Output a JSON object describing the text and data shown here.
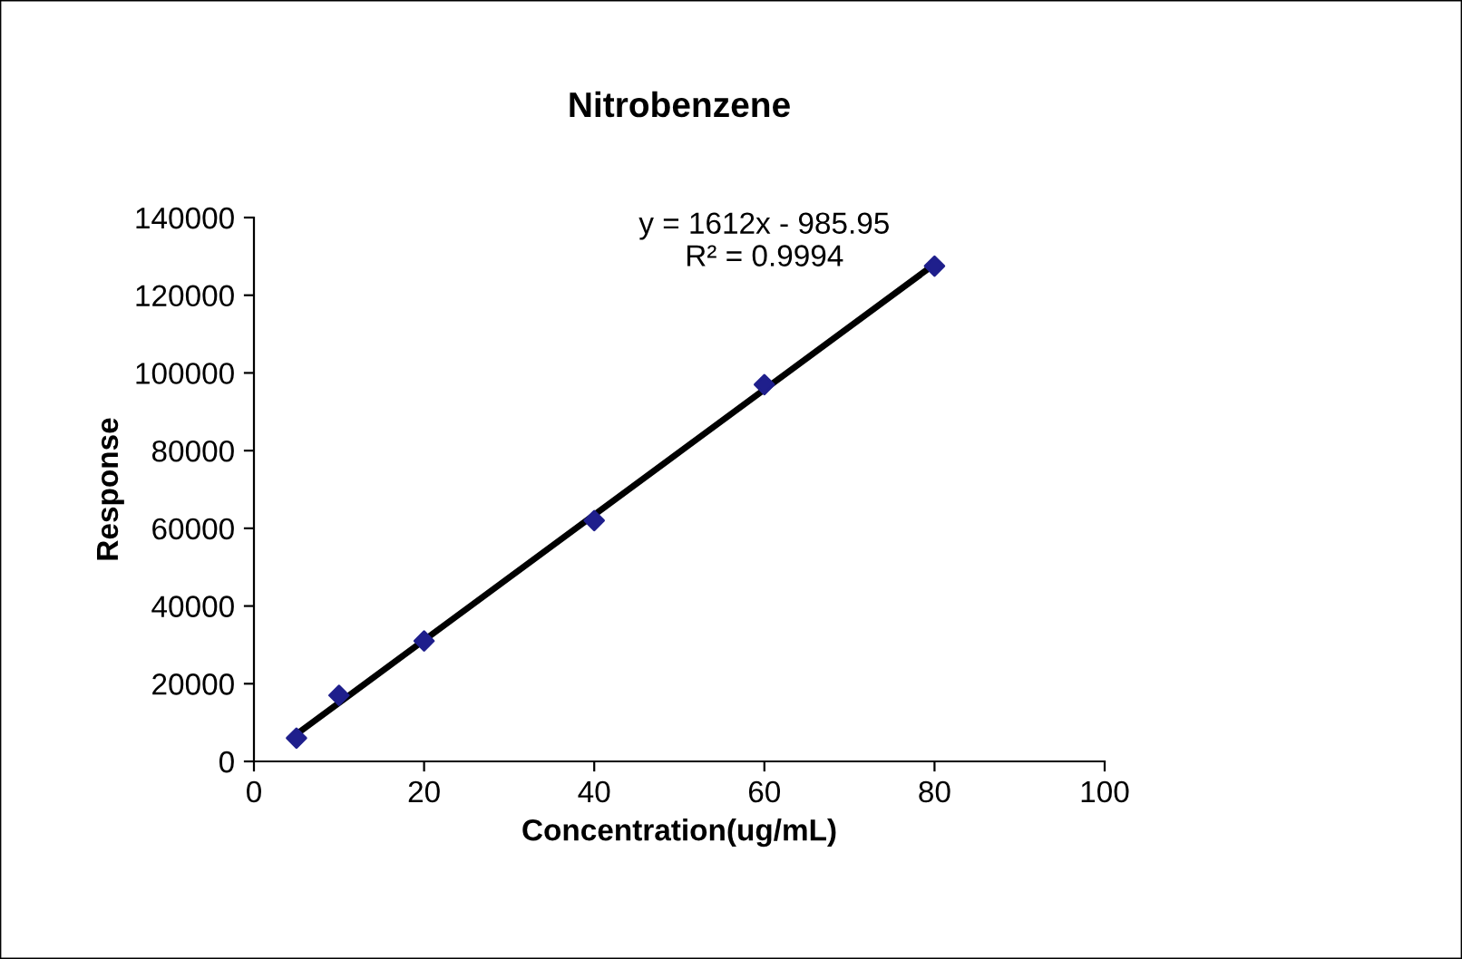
{
  "chart_data": {
    "type": "scatter",
    "title": "Nitrobenzene",
    "xlabel": "Concentration(ug/mL)",
    "ylabel": "Response",
    "x": [
      5,
      10,
      20,
      40,
      60,
      80
    ],
    "series": [
      {
        "type": "scatter",
        "color": "#1f1f8c",
        "values": [
          6000,
          17000,
          31000,
          62000,
          97000,
          127500
        ],
        "marker": "diamond"
      },
      {
        "type": "line",
        "color": "#000000",
        "x": [
          5,
          80
        ],
        "values": [
          7000,
          128000
        ],
        "marker": "none",
        "line_style": "solid"
      }
    ],
    "annotations": [
      "y = 1612x - 985.95\nR² = 0.9994"
    ],
    "xlim": [
      0,
      100
    ],
    "xticks": [
      0,
      20,
      40,
      60,
      80,
      100
    ],
    "ylim": [
      0,
      140000
    ],
    "yticks": [
      0,
      20000,
      40000,
      60000,
      80000,
      100000,
      120000,
      140000
    ],
    "grid": false
  }
}
